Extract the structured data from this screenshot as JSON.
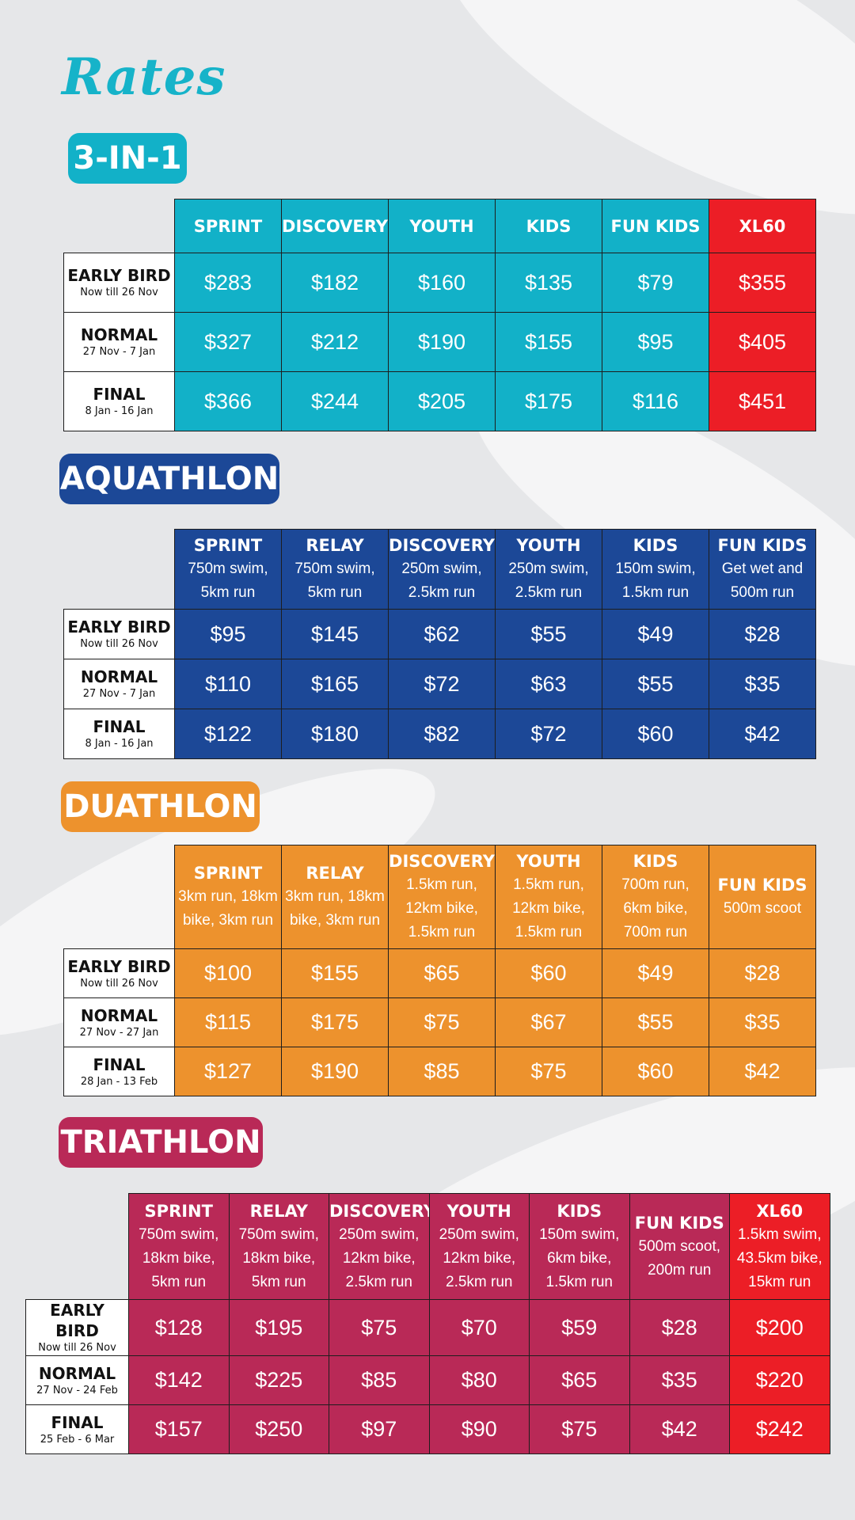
{
  "title": "Rates",
  "colors": {
    "title": "#16b3c9",
    "three_in_one": "#12b1c8",
    "aquathlon": "#1c4897",
    "duathlon": "#ed922d",
    "triathlon": "#b92957",
    "xl60": "#ec1e26"
  },
  "three_in_one": {
    "heading": "3-IN-1",
    "columns": [
      {
        "name": "SPRINT",
        "desc": ""
      },
      {
        "name": "DISCOVERY",
        "desc": ""
      },
      {
        "name": "YOUTH",
        "desc": ""
      },
      {
        "name": "KIDS",
        "desc": ""
      },
      {
        "name": "FUN KIDS",
        "desc": ""
      },
      {
        "name": "XL60",
        "desc": ""
      }
    ],
    "rows": [
      {
        "label": "EARLY BIRD",
        "dates": "Now till 26 Nov",
        "prices": [
          "$283",
          "$182",
          "$160",
          "$135",
          "$79",
          "$355"
        ]
      },
      {
        "label": "NORMAL",
        "dates": "27 Nov - 7 Jan",
        "prices": [
          "$327",
          "$212",
          "$190",
          "$155",
          "$95",
          "$405"
        ]
      },
      {
        "label": "FINAL",
        "dates": "8 Jan  - 16 Jan",
        "prices": [
          "$366",
          "$244",
          "$205",
          "$175",
          "$116",
          "$451"
        ]
      }
    ]
  },
  "aquathlon": {
    "heading": "AQUATHLON",
    "columns": [
      {
        "name": "SPRINT",
        "desc": "750m swim, 5km run"
      },
      {
        "name": "RELAY",
        "desc": "750m swim, 5km run"
      },
      {
        "name": "DISCOVERY",
        "desc": "250m swim, 2.5km run"
      },
      {
        "name": "YOUTH",
        "desc": "250m swim, 2.5km run"
      },
      {
        "name": "KIDS",
        "desc": "150m swim, 1.5km run"
      },
      {
        "name": "FUN KIDS",
        "desc": "Get wet and 500m run"
      }
    ],
    "rows": [
      {
        "label": "EARLY BIRD",
        "dates": "Now till 26 Nov",
        "prices": [
          "$95",
          "$145",
          "$62",
          "$55",
          "$49",
          "$28"
        ]
      },
      {
        "label": "NORMAL",
        "dates": "27 Nov - 7 Jan",
        "prices": [
          "$110",
          "$165",
          "$72",
          "$63",
          "$55",
          "$35"
        ]
      },
      {
        "label": "FINAL",
        "dates": "8 Jan  - 16 Jan",
        "prices": [
          "$122",
          "$180",
          "$82",
          "$72",
          "$60",
          "$42"
        ]
      }
    ]
  },
  "duathlon": {
    "heading": "DUATHLON",
    "columns": [
      {
        "name": "SPRINT",
        "desc": "3km run, 18km bike, 3km run"
      },
      {
        "name": "RELAY",
        "desc": "3km run, 18km bike, 3km run"
      },
      {
        "name": "DISCOVERY",
        "desc": "1.5km run, 12km bike, 1.5km run"
      },
      {
        "name": "YOUTH",
        "desc": "1.5km run, 12km bike, 1.5km run"
      },
      {
        "name": "KIDS",
        "desc": "700m run, 6km bike, 700m run"
      },
      {
        "name": "FUN KIDS",
        "desc": "500m scoot"
      }
    ],
    "rows": [
      {
        "label": "EARLY BIRD",
        "dates": "Now till 26 Nov",
        "prices": [
          "$100",
          "$155",
          "$65",
          "$60",
          "$49",
          "$28"
        ]
      },
      {
        "label": "NORMAL",
        "dates": "27 Nov - 27 Jan",
        "prices": [
          "$115",
          "$175",
          "$75",
          "$67",
          "$55",
          "$35"
        ]
      },
      {
        "label": "FINAL",
        "dates": "28 Jan  - 13 Feb",
        "prices": [
          "$127",
          "$190",
          "$85",
          "$75",
          "$60",
          "$42"
        ]
      }
    ]
  },
  "triathlon": {
    "heading": "TRIATHLON",
    "columns": [
      {
        "name": "SPRINT",
        "desc": "750m swim, 18km bike, 5km run"
      },
      {
        "name": "RELAY",
        "desc": "750m swim, 18km bike, 5km run"
      },
      {
        "name": "DISCOVERY",
        "desc": "250m swim, 12km bike, 2.5km run"
      },
      {
        "name": "YOUTH",
        "desc": "250m swim, 12km bike, 2.5km run"
      },
      {
        "name": "KIDS",
        "desc": "150m swim, 6km bike, 1.5km run"
      },
      {
        "name": "FUN KIDS",
        "desc": "500m scoot, 200m run"
      },
      {
        "name": "XL60",
        "desc": "1.5km swim, 43.5km bike, 15km run"
      }
    ],
    "rows": [
      {
        "label": "EARLY BIRD",
        "dates": "Now till 26 Nov",
        "prices": [
          "$128",
          "$195",
          "$75",
          "$70",
          "$59",
          "$28",
          "$200"
        ]
      },
      {
        "label": "NORMAL",
        "dates": "27 Nov - 24 Feb",
        "prices": [
          "$142",
          "$225",
          "$85",
          "$80",
          "$65",
          "$35",
          "$220"
        ]
      },
      {
        "label": "FINAL",
        "dates": "25 Feb  - 6 Mar",
        "prices": [
          "$157",
          "$250",
          "$97",
          "$90",
          "$75",
          "$42",
          "$242"
        ]
      }
    ]
  }
}
